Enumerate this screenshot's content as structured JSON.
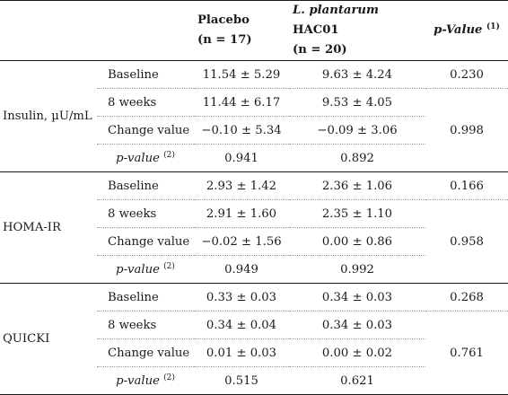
{
  "header": {
    "placebo_label": "Placebo",
    "placebo_n": "(n = 17)",
    "treat_label_italic": "L. plantarum",
    "treat_label_rest": " HAC01",
    "treat_n": "(n = 20)",
    "pvalue_label": "p-Value",
    "pvalue_sup": "(1)"
  },
  "groups": [
    {
      "label": "Insulin, µU/mL",
      "rows": [
        {
          "measure": "Baseline",
          "placebo": "11.54 ± 5.29",
          "treatment": "9.63 ± 4.24"
        },
        {
          "measure": "8 weeks",
          "placebo": "11.44 ± 6.17",
          "treatment": "9.53 ± 4.05"
        },
        {
          "measure": "Change value",
          "placebo": "−0.10 ± 5.34",
          "treatment": "−0.09 ± 3.06"
        },
        {
          "measure": "p-value",
          "measure_sup": "(2)",
          "placebo": "0.941",
          "treatment": "0.892"
        }
      ],
      "p_baseline": "0.230",
      "p_change": "0.998"
    },
    {
      "label": "HOMA-IR",
      "rows": [
        {
          "measure": "Baseline",
          "placebo": "2.93 ± 1.42",
          "treatment": "2.36 ± 1.06"
        },
        {
          "measure": "8 weeks",
          "placebo": "2.91 ± 1.60",
          "treatment": "2.35 ± 1.10"
        },
        {
          "measure": "Change value",
          "placebo": "−0.02 ± 1.56",
          "treatment": "0.00 ± 0.86"
        },
        {
          "measure": "p-value",
          "measure_sup": "(2)",
          "placebo": "0.949",
          "treatment": "0.992"
        }
      ],
      "p_baseline": "0.166",
      "p_change": "0.958"
    },
    {
      "label": "QUICKI",
      "rows": [
        {
          "measure": "Baseline",
          "placebo": "0.33 ± 0.03",
          "treatment": "0.34 ± 0.03"
        },
        {
          "measure": "8 weeks",
          "placebo": "0.34 ± 0.04",
          "treatment": "0.34 ± 0.03"
        },
        {
          "measure": "Change value",
          "placebo": "0.01 ± 0.03",
          "treatment": "0.00 ± 0.02"
        },
        {
          "measure": "p-value",
          "measure_sup": "(2)",
          "placebo": "0.515",
          "treatment": "0.621"
        }
      ],
      "p_baseline": "0.268",
      "p_change": "0.761"
    }
  ]
}
